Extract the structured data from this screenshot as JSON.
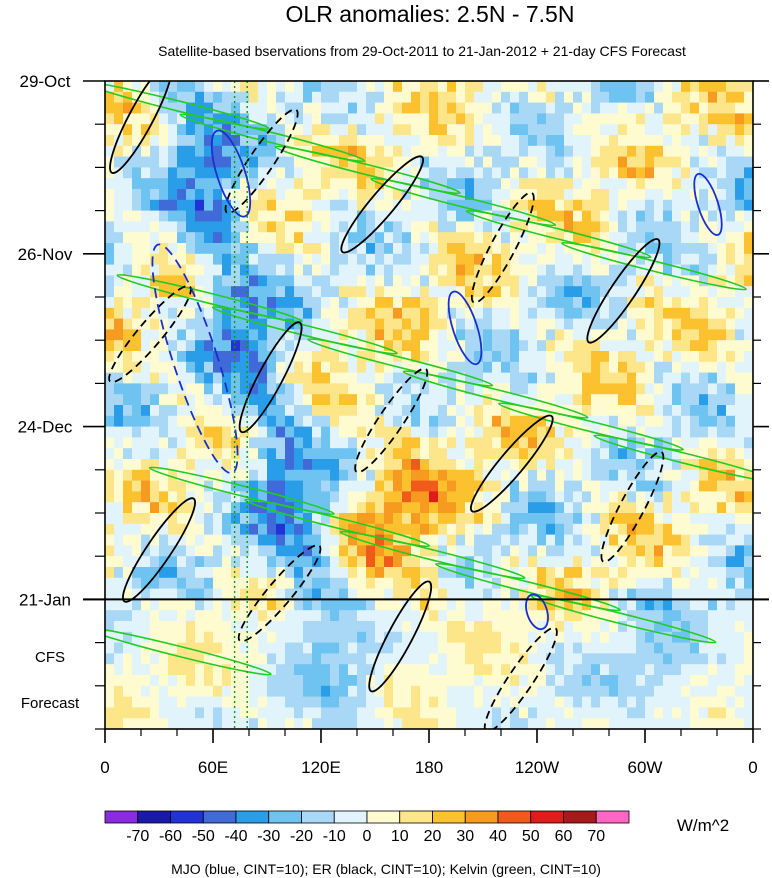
{
  "chart_data": {
    "type": "heatmap",
    "title": "OLR anomalies: 2.5N - 7.5N",
    "subtitle": "Satellite-based bservations from 29-Oct-2011 to 21-Jan-2012 + 21-day CFS Forecast",
    "x_tick_labels": [
      "0",
      "60E",
      "120E",
      "180",
      "120W",
      "60W",
      "0"
    ],
    "x_tick_lon": [
      0,
      60,
      120,
      180,
      240,
      300,
      360
    ],
    "x_range": [
      0,
      360
    ],
    "y_tick_labels": [
      "29-Oct",
      "26-Nov",
      "24-Dec",
      "21-Jan"
    ],
    "y_tick_day": [
      0,
      28,
      56,
      84
    ],
    "y_range_days": [
      0,
      105
    ],
    "forecast_start_day": 84,
    "forecast_label_line1": "CFS",
    "forecast_label_line2": "Forecast",
    "colorbar": {
      "unit": "W/m^2",
      "tick_labels": [
        "-70",
        "-60",
        "-50",
        "-40",
        "-30",
        "-20",
        "-10",
        "0",
        "10",
        "20",
        "30",
        "40",
        "50",
        "60",
        "70"
      ],
      "colors": [
        "#8a2be2",
        "#1a1aa6",
        "#2233d6",
        "#3f6ad8",
        "#2a9de8",
        "#6fc3f0",
        "#a8d8f5",
        "#e2f4fb",
        "#fffbd0",
        "#fde68a",
        "#fcc12e",
        "#f79a20",
        "#f05a1a",
        "#dd1c1c",
        "#a51a1a",
        "#ff66c4"
      ]
    },
    "footer_note": "MJO (blue, CINT=10); ER (black, CINT=10); Kelvin (green, CINT=10)",
    "contour_colors": {
      "mjo": "#1a2fd0",
      "er": "#000000",
      "kelvin": "#22cc22"
    }
  }
}
